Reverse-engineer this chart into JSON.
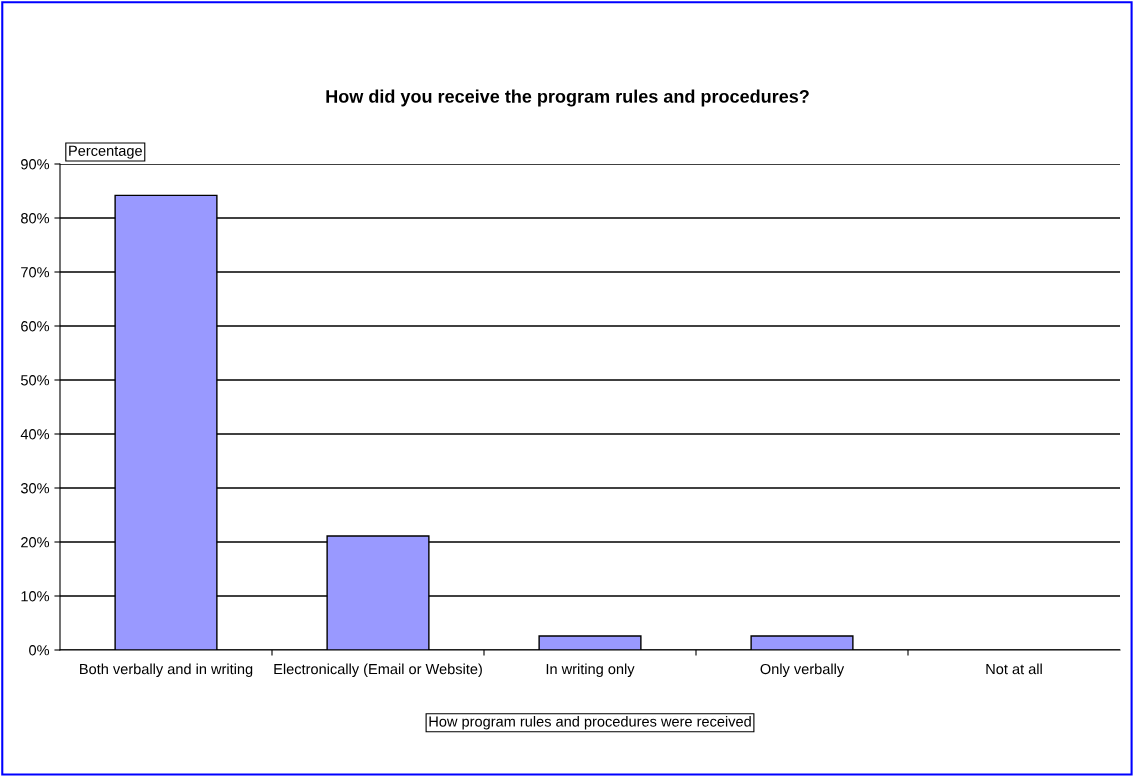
{
  "chart_data": {
    "type": "bar",
    "title": "How did you receive the program rules and procedures?",
    "ylabel": "Percentage",
    "xlabel": "How program rules and procedures were received",
    "categories": [
      "Both verbally and in writing",
      "Electronically (Email or Website)",
      "In writing only",
      "Only verbally",
      "Not at all"
    ],
    "values": [
      84.2,
      21.1,
      2.6,
      2.6,
      0
    ],
    "color": "#9999ff",
    "ylim": [
      0,
      90
    ],
    "yticks": [
      {
        "value": 0,
        "label": "0%"
      },
      {
        "value": 10,
        "label": "10%"
      },
      {
        "value": 20,
        "label": "20%"
      },
      {
        "value": 30,
        "label": "30%"
      },
      {
        "value": 40,
        "label": "40%"
      },
      {
        "value": 50,
        "label": "50%"
      },
      {
        "value": 60,
        "label": "60%"
      },
      {
        "value": 70,
        "label": "70%"
      },
      {
        "value": 80,
        "label": "80%"
      },
      {
        "value": 90,
        "label": "90%"
      }
    ],
    "grid": "y",
    "legend": false
  }
}
